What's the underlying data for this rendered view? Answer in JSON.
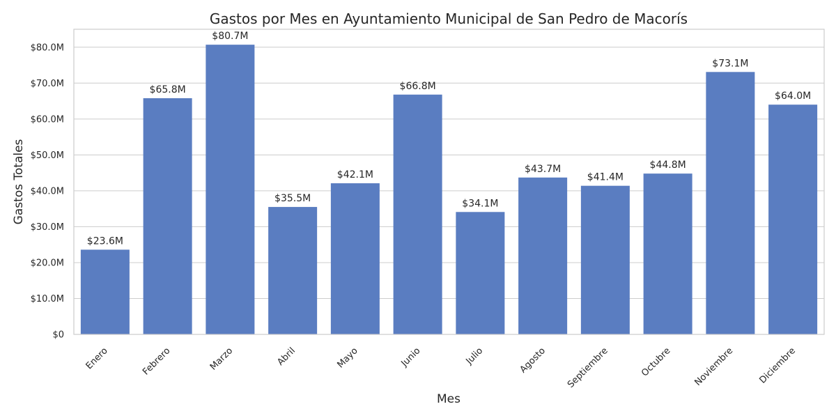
{
  "chart_data": {
    "type": "bar",
    "title": "Gastos por Mes en Ayuntamiento Municipal de San Pedro de Macorís",
    "xlabel": "Mes",
    "ylabel": "Gastos Totales",
    "categories": [
      "Enero",
      "Febrero",
      "Marzo",
      "Abril",
      "Mayo",
      "Junio",
      "Julio",
      "Agosto",
      "Septiembre",
      "Octubre",
      "Noviembre",
      "Diciembre"
    ],
    "values": [
      23.6,
      65.8,
      80.7,
      35.5,
      42.1,
      66.8,
      34.1,
      43.7,
      41.4,
      44.8,
      73.1,
      64.0
    ],
    "value_labels": [
      "$23.6M",
      "$65.8M",
      "$80.7M",
      "$35.5M",
      "$42.1M",
      "$66.8M",
      "$34.1M",
      "$43.7M",
      "$41.4M",
      "$44.8M",
      "$73.1M",
      "$64.0M"
    ],
    "ylim": [
      0,
      85
    ],
    "yticks": [
      0,
      10,
      20,
      30,
      40,
      50,
      60,
      70,
      80
    ],
    "ytick_labels": [
      "$0",
      "$10.0M",
      "$20.0M",
      "$30.0M",
      "$40.0M",
      "$50.0M",
      "$60.0M",
      "$70.0M",
      "$80.0M"
    ],
    "grid": "horizontal",
    "bar_color": "#5a7dc1",
    "grid_color": "#cccccc"
  }
}
